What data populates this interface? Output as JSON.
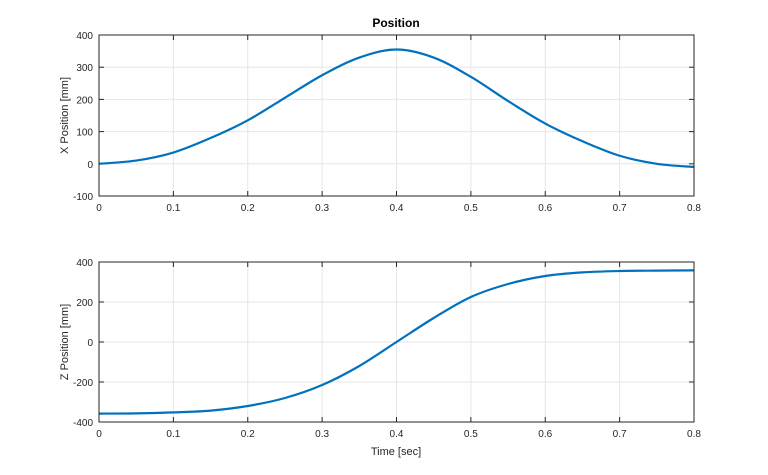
{
  "figure": {
    "title": "Position",
    "xlabel": "Time [sec]"
  },
  "chart_data": [
    {
      "type": "line",
      "title": "Position",
      "xlabel": "",
      "ylabel": "X Position [mm]",
      "xlim": [
        0,
        0.8
      ],
      "ylim": [
        -100,
        400
      ],
      "xticks": [
        "0",
        "0.1",
        "0.2",
        "0.3",
        "0.4",
        "0.5",
        "0.6",
        "0.7",
        "0.8"
      ],
      "yticks": [
        "-100",
        "0",
        "100",
        "200",
        "300",
        "400"
      ],
      "grid": true,
      "series": [
        {
          "name": "X Position",
          "color": "#0072BD",
          "x": [
            0,
            0.05,
            0.1,
            0.15,
            0.2,
            0.25,
            0.3,
            0.35,
            0.4,
            0.45,
            0.5,
            0.55,
            0.6,
            0.65,
            0.7,
            0.75,
            0.8
          ],
          "y": [
            0,
            10,
            35,
            80,
            135,
            205,
            275,
            330,
            355,
            330,
            270,
            195,
            125,
            70,
            25,
            0,
            -10
          ]
        }
      ]
    },
    {
      "type": "line",
      "title": "",
      "xlabel": "Time [sec]",
      "ylabel": "Z Position [mm]",
      "xlim": [
        0,
        0.8
      ],
      "ylim": [
        -400,
        400
      ],
      "xticks": [
        "0",
        "0.1",
        "0.2",
        "0.3",
        "0.4",
        "0.5",
        "0.6",
        "0.7",
        "0.8"
      ],
      "yticks": [
        "-400",
        "-200",
        "0",
        "200",
        "400"
      ],
      "grid": true,
      "series": [
        {
          "name": "Z Position",
          "color": "#0072BD",
          "x": [
            0,
            0.05,
            0.1,
            0.15,
            0.2,
            0.25,
            0.3,
            0.35,
            0.4,
            0.45,
            0.5,
            0.55,
            0.6,
            0.65,
            0.7,
            0.75,
            0.8
          ],
          "y": [
            -358,
            -357,
            -352,
            -343,
            -320,
            -280,
            -215,
            -120,
            0,
            120,
            225,
            290,
            330,
            348,
            355,
            357,
            358
          ]
        }
      ]
    }
  ]
}
